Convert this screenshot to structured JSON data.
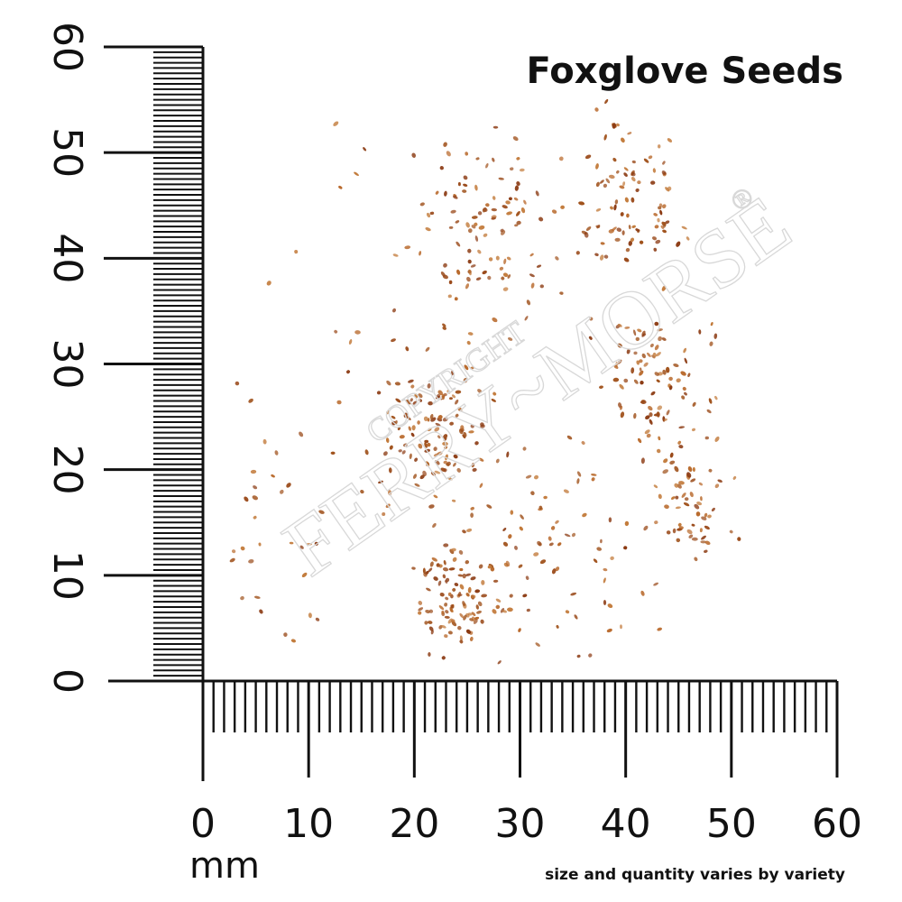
{
  "title": "Foxglove Seeds",
  "unit": "mm",
  "note": "size and quantity varies by variety",
  "horizontal_labels": [
    "0",
    "10",
    "20",
    "30",
    "40",
    "50",
    "60"
  ],
  "vertical_labels": [
    "0",
    "10",
    "20",
    "30",
    "40",
    "50",
    "60"
  ],
  "watermark": {
    "top": "COPYRIGHT",
    "main": "FERRY~MORSE",
    "mark": "®"
  }
}
